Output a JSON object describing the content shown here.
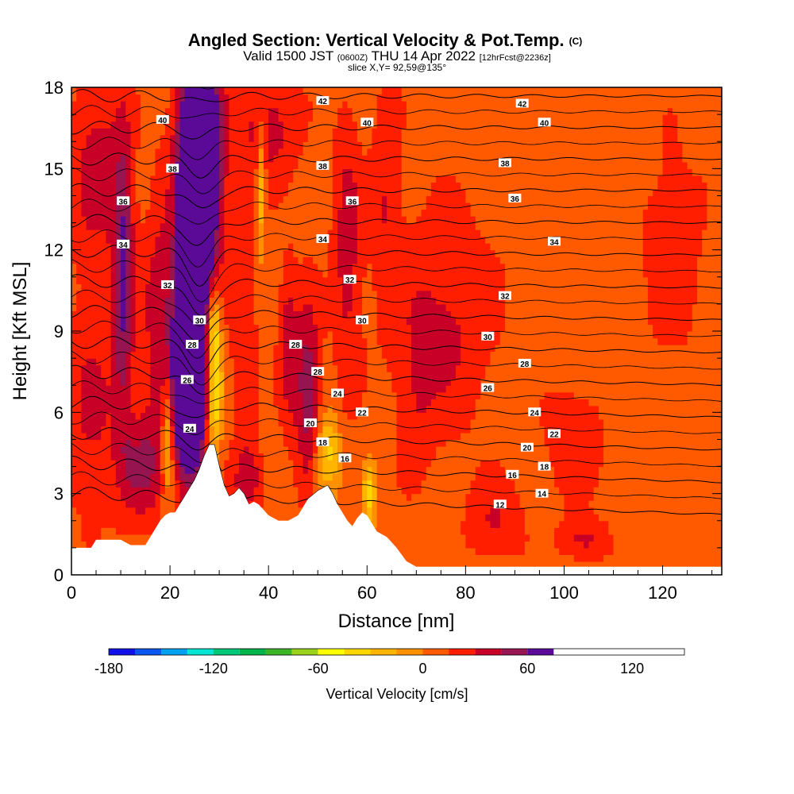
{
  "title": {
    "main": "Angled Section: Vertical Velocity & Pot.Temp.",
    "main_tag": "(C)",
    "valid_prefix": "Valid 1500 JST",
    "valid_utc": "(0600Z)",
    "valid_date": "THU 14 Apr 2022",
    "forecast": "[12hrFcst@2236z]",
    "slice": "slice X,Y= 92,59@135°"
  },
  "chart_data": {
    "type": "heatmap",
    "xlabel": "Distance [nm]",
    "ylabel": "Height [Kft MSL]",
    "xlim": [
      0,
      132
    ],
    "ylim": [
      0,
      18
    ],
    "x_ticks": [
      0,
      20,
      40,
      60,
      80,
      100,
      120
    ],
    "y_ticks": [
      0,
      3,
      6,
      9,
      12,
      15,
      18
    ],
    "colorbar": {
      "label": "Vertical Velocity [cm/s]",
      "min": -180,
      "max": 150,
      "step": 15,
      "tick_values": [
        -180,
        -120,
        -60,
        0,
        60,
        120
      ],
      "colors": [
        "#1010e8",
        "#0a55f0",
        "#00a0f0",
        "#00e6d2",
        "#00c878",
        "#00b44a",
        "#3cb428",
        "#9ad21c",
        "#ffff00",
        "#ffd700",
        "#ffb400",
        "#ff9000",
        "#ff5a00",
        "#ff1e00",
        "#c80028",
        "#961450",
        "#5a0a96"
      ]
    },
    "terrain_kft": [
      [
        0,
        1.0
      ],
      [
        4,
        1.0
      ],
      [
        5,
        1.3
      ],
      [
        10,
        1.3
      ],
      [
        12,
        1.1
      ],
      [
        15,
        1.1
      ],
      [
        16,
        1.4
      ],
      [
        17,
        1.7
      ],
      [
        18,
        2.0
      ],
      [
        19,
        2.2
      ],
      [
        20,
        2.3
      ],
      [
        21,
        2.3
      ],
      [
        22,
        2.6
      ],
      [
        23,
        2.9
      ],
      [
        24,
        3.2
      ],
      [
        25,
        3.5
      ],
      [
        26,
        3.9
      ],
      [
        27,
        4.4
      ],
      [
        28,
        4.8
      ],
      [
        29,
        4.8
      ],
      [
        30,
        4.0
      ],
      [
        31,
        3.3
      ],
      [
        32,
        2.9
      ],
      [
        33,
        3.0
      ],
      [
        34,
        3.2
      ],
      [
        35,
        3.0
      ],
      [
        36,
        2.6
      ],
      [
        37,
        2.7
      ],
      [
        38,
        2.6
      ],
      [
        39,
        2.4
      ],
      [
        40,
        2.2
      ],
      [
        42,
        2.0
      ],
      [
        44,
        2.0
      ],
      [
        46,
        2.2
      ],
      [
        47,
        2.5
      ],
      [
        48,
        2.8
      ],
      [
        50,
        3.1
      ],
      [
        52,
        3.3
      ],
      [
        53,
        3.0
      ],
      [
        54,
        2.6
      ],
      [
        55,
        2.3
      ],
      [
        56,
        2.0
      ],
      [
        57,
        1.8
      ],
      [
        58,
        2.1
      ],
      [
        59,
        2.3
      ],
      [
        60,
        2.2
      ],
      [
        61,
        1.9
      ],
      [
        62,
        1.6
      ],
      [
        64,
        1.4
      ],
      [
        66,
        1.0
      ],
      [
        68,
        0.5
      ],
      [
        70,
        0.3
      ],
      [
        72,
        0.3
      ],
      [
        132,
        0.3
      ]
    ],
    "velocity_features": [
      {
        "x": 25.5,
        "y": 12.0,
        "rx": 3.6,
        "ry": 6.5,
        "w": 130
      },
      {
        "x": 23.5,
        "y": 7.2,
        "rx": 2.6,
        "ry": 3.2,
        "w": 120
      },
      {
        "x": 26.5,
        "y": 15.8,
        "rx": 4.0,
        "ry": 2.8,
        "w": 90
      },
      {
        "x": 10.5,
        "y": 11.0,
        "rx": 2.2,
        "ry": 5.5,
        "w": 55
      },
      {
        "x": 18.0,
        "y": 9.0,
        "rx": 3.5,
        "ry": 5.0,
        "w": 35
      },
      {
        "x": 29.0,
        "y": 7.0,
        "rx": 1.6,
        "ry": 2.5,
        "w": -75
      },
      {
        "x": 28.5,
        "y": 9.5,
        "rx": 1.6,
        "ry": 1.6,
        "w": -55
      },
      {
        "x": 19.5,
        "y": 5.2,
        "rx": 1.3,
        "ry": 2.5,
        "w": -45
      },
      {
        "x": 38.5,
        "y": 14.5,
        "rx": 0.9,
        "ry": 2.5,
        "w": -40
      },
      {
        "x": 52.0,
        "y": 4.5,
        "rx": 2.5,
        "ry": 1.5,
        "w": -45
      },
      {
        "x": 60.5,
        "y": 3.0,
        "rx": 1.3,
        "ry": 1.2,
        "w": -40
      },
      {
        "x": 48.0,
        "y": 6.8,
        "rx": 2.5,
        "ry": 3.2,
        "w": 50
      },
      {
        "x": 44.0,
        "y": 8.5,
        "rx": 2.0,
        "ry": 3.0,
        "w": 30
      },
      {
        "x": 35.0,
        "y": 9.0,
        "rx": 2.6,
        "ry": 5.0,
        "w": 20
      },
      {
        "x": 40.0,
        "y": 16.5,
        "rx": 6.0,
        "ry": 2.0,
        "w": 30
      },
      {
        "x": 5.0,
        "y": 15.0,
        "rx": 5.0,
        "ry": 3.5,
        "w": 30
      },
      {
        "x": 4.0,
        "y": 6.0,
        "rx": 5.0,
        "ry": 4.0,
        "w": 25
      },
      {
        "x": 14.0,
        "y": 4.0,
        "rx": 4.5,
        "ry": 2.0,
        "w": 35
      },
      {
        "x": 36.0,
        "y": 3.5,
        "rx": 3.0,
        "ry": 1.3,
        "w": 30
      },
      {
        "x": 56.0,
        "y": 12.0,
        "rx": 3.0,
        "ry": 5.0,
        "w": 30
      },
      {
        "x": 64.0,
        "y": 14.0,
        "rx": 3.0,
        "ry": 4.0,
        "w": 22
      },
      {
        "x": 76.0,
        "y": 9.5,
        "rx": 10.0,
        "ry": 4.0,
        "w": 25
      },
      {
        "x": 86.0,
        "y": 2.0,
        "rx": 6.0,
        "ry": 1.5,
        "w": 22
      },
      {
        "x": 104.0,
        "y": 1.3,
        "rx": 5.0,
        "ry": 0.8,
        "w": 25
      },
      {
        "x": 122.0,
        "y": 12.0,
        "rx": 6.0,
        "ry": 4.0,
        "w": 18
      },
      {
        "x": 102.0,
        "y": 5.0,
        "rx": 6.0,
        "ry": 2.0,
        "w": 20
      },
      {
        "x": 70.0,
        "y": 6.5,
        "rx": 4.0,
        "ry": 3.0,
        "w": 15
      }
    ],
    "isentropes_degC": [
      12,
      14,
      16,
      18,
      20,
      22,
      24,
      26,
      28,
      30,
      32,
      34,
      36,
      38,
      40,
      42
    ],
    "contour_labels": [
      {
        "x": 18.5,
        "y": 16.8,
        "text": "40"
      },
      {
        "x": 20.5,
        "y": 15.0,
        "text": "38"
      },
      {
        "x": 10.5,
        "y": 13.8,
        "text": "36"
      },
      {
        "x": 10.5,
        "y": 12.2,
        "text": "34"
      },
      {
        "x": 19.5,
        "y": 10.7,
        "text": "32"
      },
      {
        "x": 26.0,
        "y": 9.4,
        "text": "30"
      },
      {
        "x": 24.5,
        "y": 8.5,
        "text": "28"
      },
      {
        "x": 23.5,
        "y": 7.2,
        "text": "26"
      },
      {
        "x": 24.0,
        "y": 5.4,
        "text": "24"
      },
      {
        "x": 51.0,
        "y": 17.5,
        "text": "42"
      },
      {
        "x": 60.0,
        "y": 16.7,
        "text": "40"
      },
      {
        "x": 51.0,
        "y": 15.1,
        "text": "38"
      },
      {
        "x": 57.0,
        "y": 13.8,
        "text": "36"
      },
      {
        "x": 51.0,
        "y": 12.4,
        "text": "34"
      },
      {
        "x": 56.5,
        "y": 10.9,
        "text": "32"
      },
      {
        "x": 59.0,
        "y": 9.4,
        "text": "30"
      },
      {
        "x": 45.5,
        "y": 8.5,
        "text": "28"
      },
      {
        "x": 50.0,
        "y": 7.5,
        "text": "28"
      },
      {
        "x": 54.0,
        "y": 6.7,
        "text": "24"
      },
      {
        "x": 59.0,
        "y": 6.0,
        "text": "22"
      },
      {
        "x": 48.5,
        "y": 5.6,
        "text": "20"
      },
      {
        "x": 51.0,
        "y": 4.9,
        "text": "18"
      },
      {
        "x": 55.5,
        "y": 4.3,
        "text": "16"
      },
      {
        "x": 91.5,
        "y": 17.4,
        "text": "42"
      },
      {
        "x": 96.0,
        "y": 16.7,
        "text": "40"
      },
      {
        "x": 88.0,
        "y": 15.2,
        "text": "38"
      },
      {
        "x": 90.0,
        "y": 13.9,
        "text": "36"
      },
      {
        "x": 98.0,
        "y": 12.3,
        "text": "34"
      },
      {
        "x": 88.0,
        "y": 10.3,
        "text": "32"
      },
      {
        "x": 84.5,
        "y": 8.8,
        "text": "30"
      },
      {
        "x": 92.0,
        "y": 7.8,
        "text": "28"
      },
      {
        "x": 84.5,
        "y": 6.9,
        "text": "26"
      },
      {
        "x": 94.0,
        "y": 6.0,
        "text": "24"
      },
      {
        "x": 98.0,
        "y": 5.2,
        "text": "22"
      },
      {
        "x": 92.5,
        "y": 4.7,
        "text": "20"
      },
      {
        "x": 96.0,
        "y": 4.0,
        "text": "18"
      },
      {
        "x": 89.5,
        "y": 3.7,
        "text": "16"
      },
      {
        "x": 95.5,
        "y": 3.0,
        "text": "14"
      },
      {
        "x": 87.0,
        "y": 2.6,
        "text": "12"
      }
    ]
  }
}
